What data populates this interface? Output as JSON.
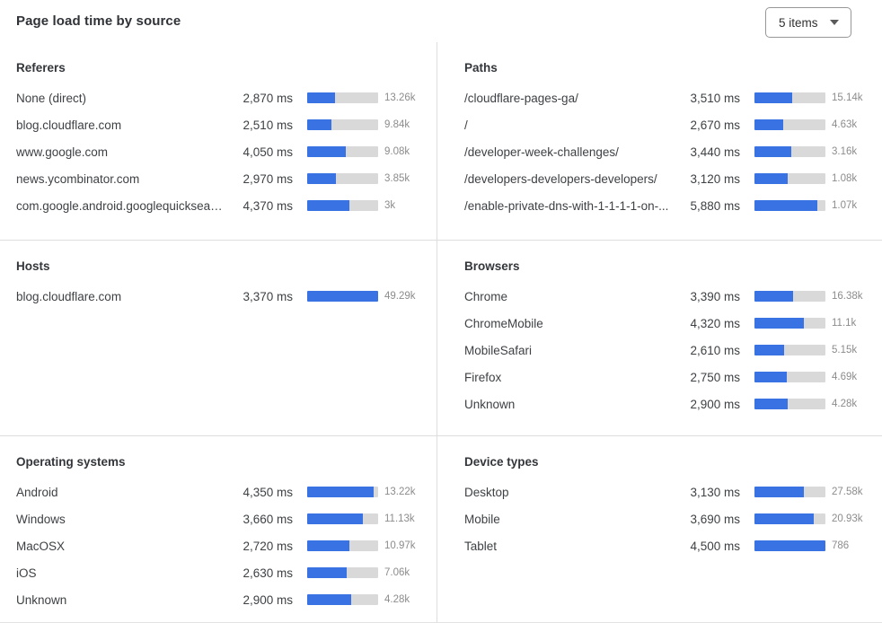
{
  "header": {
    "title": "Page load time by source",
    "dropdown": {
      "value": "5 items"
    }
  },
  "colors": {
    "bar_fill": "#3973e3",
    "bar_track": "#d9d9d9",
    "divider": "#dedede",
    "text_primary": "#3e4144",
    "text_secondary": "#8c8c8c"
  },
  "panels": [
    {
      "id": "referers",
      "title": "Referers",
      "rows": [
        {
          "label": "None (direct)",
          "ms": "2,870 ms",
          "count": "13.26k",
          "bar_percent": 39.5
        },
        {
          "label": "blog.cloudflare.com",
          "ms": "2,510 ms",
          "count": "9.84k",
          "bar_percent": 34.5
        },
        {
          "label": "www.google.com",
          "ms": "4,050 ms",
          "count": "9.08k",
          "bar_percent": 55
        },
        {
          "label": "news.ycombinator.com",
          "ms": "2,970 ms",
          "count": "3.85k",
          "bar_percent": 41
        },
        {
          "label": "com.google.android.googlequicksearc...",
          "ms": "4,370 ms",
          "count": "3k",
          "bar_percent": 60
        }
      ]
    },
    {
      "id": "paths",
      "title": "Paths",
      "rows": [
        {
          "label": "/cloudflare-pages-ga/",
          "ms": "3,510 ms",
          "count": "15.14k",
          "bar_percent": 53
        },
        {
          "label": "/",
          "ms": "2,670 ms",
          "count": "4.63k",
          "bar_percent": 40
        },
        {
          "label": "/developer-week-challenges/",
          "ms": "3,440 ms",
          "count": "3.16k",
          "bar_percent": 52
        },
        {
          "label": "/developers-developers-developers/",
          "ms": "3,120 ms",
          "count": "1.08k",
          "bar_percent": 47
        },
        {
          "label": "/enable-private-dns-with-1-1-1-1-on-...",
          "ms": "5,880 ms",
          "count": "1.07k",
          "bar_percent": 88
        }
      ]
    },
    {
      "id": "hosts",
      "title": "Hosts",
      "rows": [
        {
          "label": "blog.cloudflare.com",
          "ms": "3,370 ms",
          "count": "49.29k",
          "bar_percent": 100
        }
      ]
    },
    {
      "id": "browsers",
      "title": "Browsers",
      "rows": [
        {
          "label": "Chrome",
          "ms": "3,390 ms",
          "count": "16.38k",
          "bar_percent": 55
        },
        {
          "label": "ChromeMobile",
          "ms": "4,320 ms",
          "count": "11.1k",
          "bar_percent": 70
        },
        {
          "label": "MobileSafari",
          "ms": "2,610 ms",
          "count": "5.15k",
          "bar_percent": 42
        },
        {
          "label": "Firefox",
          "ms": "2,750 ms",
          "count": "4.69k",
          "bar_percent": 45
        },
        {
          "label": "Unknown",
          "ms": "2,900 ms",
          "count": "4.28k",
          "bar_percent": 47
        }
      ]
    },
    {
      "id": "operating-systems",
      "title": "Operating systems",
      "rows": [
        {
          "label": "Android",
          "ms": "4,350 ms",
          "count": "13.22k",
          "bar_percent": 94
        },
        {
          "label": "Windows",
          "ms": "3,660 ms",
          "count": "11.13k",
          "bar_percent": 78
        },
        {
          "label": "MacOSX",
          "ms": "2,720 ms",
          "count": "10.97k",
          "bar_percent": 59
        },
        {
          "label": "iOS",
          "ms": "2,630 ms",
          "count": "7.06k",
          "bar_percent": 56
        },
        {
          "label": "Unknown",
          "ms": "2,900 ms",
          "count": "4.28k",
          "bar_percent": 62
        }
      ]
    },
    {
      "id": "device-types",
      "title": "Device types",
      "rows": [
        {
          "label": "Desktop",
          "ms": "3,130 ms",
          "count": "27.58k",
          "bar_percent": 70
        },
        {
          "label": "Mobile",
          "ms": "3,690 ms",
          "count": "20.93k",
          "bar_percent": 83
        },
        {
          "label": "Tablet",
          "ms": "4,500 ms",
          "count": "786",
          "bar_percent": 100
        }
      ]
    }
  ],
  "chart_data": [
    {
      "type": "bar",
      "title": "Referers",
      "categories": [
        "None (direct)",
        "blog.cloudflare.com",
        "www.google.com",
        "news.ycombinator.com",
        "com.google.android.googlequicksearc..."
      ],
      "values": [
        2870,
        2510,
        4050,
        2970,
        4370
      ],
      "value_unit": "ms",
      "counts": [
        "13.26k",
        "9.84k",
        "9.08k",
        "3.85k",
        "3k"
      ]
    },
    {
      "type": "bar",
      "title": "Paths",
      "categories": [
        "/cloudflare-pages-ga/",
        "/",
        "/developer-week-challenges/",
        "/developers-developers-developers/",
        "/enable-private-dns-with-1-1-1-1-on-..."
      ],
      "values": [
        3510,
        2670,
        3440,
        3120,
        5880
      ],
      "value_unit": "ms",
      "counts": [
        "15.14k",
        "4.63k",
        "3.16k",
        "1.08k",
        "1.07k"
      ]
    },
    {
      "type": "bar",
      "title": "Hosts",
      "categories": [
        "blog.cloudflare.com"
      ],
      "values": [
        3370
      ],
      "value_unit": "ms",
      "counts": [
        "49.29k"
      ]
    },
    {
      "type": "bar",
      "title": "Browsers",
      "categories": [
        "Chrome",
        "ChromeMobile",
        "MobileSafari",
        "Firefox",
        "Unknown"
      ],
      "values": [
        3390,
        4320,
        2610,
        2750,
        2900
      ],
      "value_unit": "ms",
      "counts": [
        "16.38k",
        "11.1k",
        "5.15k",
        "4.69k",
        "4.28k"
      ]
    },
    {
      "type": "bar",
      "title": "Operating systems",
      "categories": [
        "Android",
        "Windows",
        "MacOSX",
        "iOS",
        "Unknown"
      ],
      "values": [
        4350,
        3660,
        2720,
        2630,
        2900
      ],
      "value_unit": "ms",
      "counts": [
        "13.22k",
        "11.13k",
        "10.97k",
        "7.06k",
        "4.28k"
      ]
    },
    {
      "type": "bar",
      "title": "Device types",
      "categories": [
        "Desktop",
        "Mobile",
        "Tablet"
      ],
      "values": [
        3130,
        3690,
        4500
      ],
      "value_unit": "ms",
      "counts": [
        "27.58k",
        "20.93k",
        "786"
      ]
    }
  ]
}
